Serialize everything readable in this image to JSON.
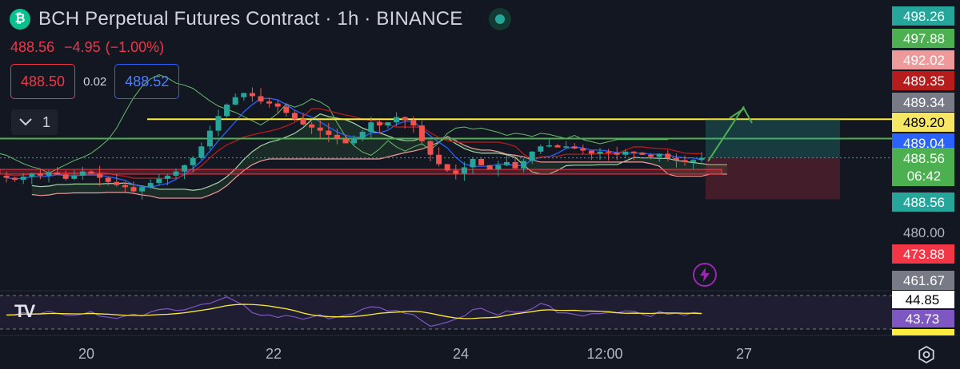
{
  "header": {
    "coin_glyph": "₿",
    "title": "BCH Perpetual Futures Contract · 1h · BINANCE",
    "last": "488.56",
    "change": "−4.95",
    "change_pct": "(−1.00%)"
  },
  "trade": {
    "sell": "488.50",
    "spread": "0.02",
    "buy": "488.52",
    "collapse_count": "1"
  },
  "icons": [
    "coin-icon",
    "live-indicator-icon",
    "chevron-down-icon",
    "tradingview-logo-icon",
    "lightning-icon",
    "settings-icon"
  ],
  "chart_data": {
    "type": "candlestick",
    "symbol": "BCH Perpetual Futures Contract",
    "interval": "1h",
    "exchange": "BINANCE",
    "ylim": [
      457,
      512
    ],
    "x_tick_labels": [
      "20",
      "22",
      "24",
      "12:00",
      "27"
    ],
    "price_scale": [
      {
        "value": "498.26",
        "color": "#26a69a"
      },
      {
        "value": "497.88",
        "color": "#4caf50"
      },
      {
        "value": "492.02",
        "color": "#ef9a9a"
      },
      {
        "value": "489.35",
        "color": "#b71c1c"
      },
      {
        "value": "489.34",
        "color": "#787b86"
      },
      {
        "value": "489.20",
        "color": "#f5e663",
        "text_color": "#000000"
      },
      {
        "value": "489.04",
        "color": "#2962ff"
      },
      {
        "value": "488.56",
        "sub": "06:42",
        "color": "#4caf50"
      },
      {
        "value": "488.56",
        "color": "#26a69a"
      },
      {
        "value": "480.00",
        "color": null
      },
      {
        "value": "473.88",
        "color": "#f23645"
      },
      {
        "value": "461.67",
        "color": "#787b86"
      }
    ],
    "horizontal_levels": [
      {
        "name": "resistance",
        "price": 489.2,
        "color": "#ffeb3b"
      },
      {
        "name": "support-green",
        "price": 485.5,
        "color": "#4caf50"
      },
      {
        "name": "support-zone",
        "price_top": 479.6,
        "price_bottom": 478.7,
        "color": "#f23645"
      }
    ],
    "position": {
      "entry": 481.8,
      "target": 489.2,
      "stop": 473.88
    },
    "close_series": [
      478.0,
      477.6,
      478.2,
      478.8,
      478.4,
      479.0,
      478.6,
      477.8,
      478.4,
      479.2,
      478.8,
      478.0,
      477.2,
      476.6,
      476.2,
      475.4,
      476.2,
      477.0,
      477.8,
      478.4,
      479.2,
      480.4,
      481.8,
      484.0,
      487.0,
      489.8,
      492.0,
      493.4,
      494.2,
      493.6,
      492.6,
      492.2,
      491.6,
      490.4,
      489.2,
      488.2,
      487.6,
      487.0,
      486.2,
      485.4,
      484.6,
      485.6,
      486.8,
      488.6,
      488.0,
      488.6,
      489.6,
      489.0,
      488.0,
      485.0,
      482.4,
      480.6,
      479.4,
      478.8,
      480.0,
      481.6,
      480.4,
      479.6,
      480.4,
      481.0,
      479.8,
      481.2,
      483.0,
      484.0,
      484.2,
      483.8,
      484.0,
      483.6,
      483.2,
      482.6,
      483.0,
      482.8,
      482.4,
      483.0,
      482.8,
      482.4,
      482.0,
      482.6,
      481.8,
      481.4,
      481.0,
      481.4,
      481.8
    ],
    "rsi": {
      "value": "43.73",
      "ma": "44.85",
      "levels": [
        "70",
        "30"
      ]
    }
  }
}
